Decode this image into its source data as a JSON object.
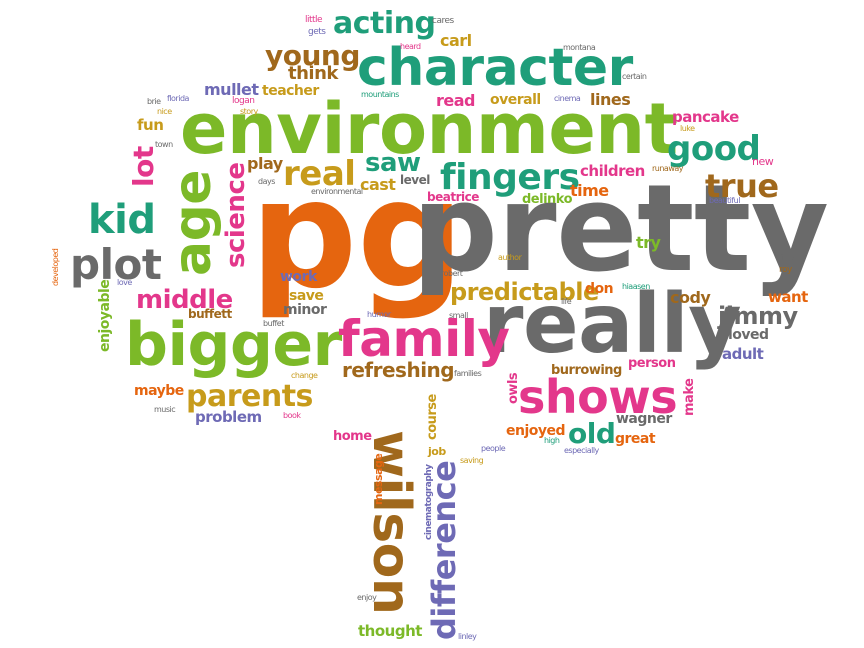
{
  "colors": {
    "teal": "#1f9e7a",
    "green": "#7cb928",
    "magenta": "#e3378b",
    "orange": "#e5650f",
    "gold": "#c79b1b",
    "brown": "#a0681c",
    "gray": "#6a6a6a",
    "purple": "#6e6ab5"
  },
  "words": [
    {
      "id": "pg",
      "text": "pg",
      "color": "#e5650f"
    },
    {
      "id": "pretty",
      "text": "pretty",
      "color": "#6a6a6a"
    },
    {
      "id": "environment",
      "text": "environment",
      "color": "#7cb928"
    },
    {
      "id": "really",
      "text": "really",
      "color": "#6a6a6a"
    },
    {
      "id": "character",
      "text": "character",
      "color": "#1f9e7a"
    },
    {
      "id": "bigger",
      "text": "bigger",
      "color": "#7cb928"
    },
    {
      "id": "family",
      "text": "family",
      "color": "#e3378b"
    },
    {
      "id": "wilson",
      "text": "wilson",
      "color": "#a0681c"
    },
    {
      "id": "shows",
      "text": "shows",
      "color": "#e3378b"
    },
    {
      "id": "age",
      "text": "age",
      "color": "#7cb928"
    },
    {
      "id": "plot",
      "text": "plot",
      "color": "#6a6a6a"
    },
    {
      "id": "kid",
      "text": "kid",
      "color": "#1f9e7a"
    },
    {
      "id": "difference",
      "text": "difference",
      "color": "#6e6ab5"
    },
    {
      "id": "fingers",
      "text": "fingers",
      "color": "#1f9e7a"
    },
    {
      "id": "good",
      "text": "good",
      "color": "#1f9e7a"
    },
    {
      "id": "true",
      "text": "true",
      "color": "#a0681c"
    },
    {
      "id": "real",
      "text": "real",
      "color": "#c79b1b"
    },
    {
      "id": "acting",
      "text": "acting",
      "color": "#1f9e7a"
    },
    {
      "id": "young",
      "text": "young",
      "color": "#a0681c"
    },
    {
      "id": "middle",
      "text": "middle",
      "color": "#e3378b"
    },
    {
      "id": "parents",
      "text": "parents",
      "color": "#c79b1b"
    },
    {
      "id": "science",
      "text": "science",
      "color": "#e3378b"
    },
    {
      "id": "predictable",
      "text": "predictable",
      "color": "#c79b1b"
    },
    {
      "id": "old",
      "text": "old",
      "color": "#1f9e7a"
    },
    {
      "id": "saw",
      "text": "saw",
      "color": "#1f9e7a"
    },
    {
      "id": "lot",
      "text": "lot",
      "color": "#e3378b"
    },
    {
      "id": "refreshing",
      "text": "refreshing",
      "color": "#a0681c"
    },
    {
      "id": "jimmy",
      "text": "jimmy",
      "color": "#6a6a6a"
    },
    {
      "id": "think",
      "text": "think",
      "color": "#a0681c"
    },
    {
      "id": "carl",
      "text": "carl",
      "color": "#c79b1b"
    },
    {
      "id": "mullet",
      "text": "mullet",
      "color": "#6e6ab5"
    },
    {
      "id": "teacher",
      "text": "teacher",
      "color": "#c79b1b"
    },
    {
      "id": "read",
      "text": "read",
      "color": "#e3378b"
    },
    {
      "id": "overall",
      "text": "overall",
      "color": "#c79b1b"
    },
    {
      "id": "lines",
      "text": "lines",
      "color": "#a0681c"
    },
    {
      "id": "pancake",
      "text": "pancake",
      "color": "#e3378b"
    },
    {
      "id": "cast",
      "text": "cast",
      "color": "#c79b1b"
    },
    {
      "id": "play",
      "text": "play",
      "color": "#a0681c"
    },
    {
      "id": "children",
      "text": "children",
      "color": "#e3378b"
    },
    {
      "id": "time",
      "text": "time",
      "color": "#e5650f"
    },
    {
      "id": "level",
      "text": "level",
      "color": "#6a6a6a"
    },
    {
      "id": "beatrice",
      "text": "beatrice",
      "color": "#e3378b"
    },
    {
      "id": "delinko",
      "text": "delinko",
      "color": "#7cb928"
    },
    {
      "id": "try",
      "text": "try",
      "color": "#7cb928"
    },
    {
      "id": "work",
      "text": "work",
      "color": "#6e6ab5"
    },
    {
      "id": "save",
      "text": "save",
      "color": "#c79b1b"
    },
    {
      "id": "minor",
      "text": "minor",
      "color": "#6a6a6a"
    },
    {
      "id": "don",
      "text": "don",
      "color": "#e5650f"
    },
    {
      "id": "cody",
      "text": "cody",
      "color": "#a0681c"
    },
    {
      "id": "want",
      "text": "want",
      "color": "#e5650f"
    },
    {
      "id": "loved",
      "text": "loved",
      "color": "#6a6a6a"
    },
    {
      "id": "adult",
      "text": "adult",
      "color": "#6e6ab5"
    },
    {
      "id": "person",
      "text": "person",
      "color": "#e3378b"
    },
    {
      "id": "burrowing",
      "text": "burrowing",
      "color": "#a0681c"
    },
    {
      "id": "enjoyed",
      "text": "enjoyed",
      "color": "#e5650f"
    },
    {
      "id": "wagner",
      "text": "wagner",
      "color": "#6a6a6a"
    },
    {
      "id": "great",
      "text": "great",
      "color": "#e5650f"
    },
    {
      "id": "maybe",
      "text": "maybe",
      "color": "#e5650f"
    },
    {
      "id": "problem",
      "text": "problem",
      "color": "#6e6ab5"
    },
    {
      "id": "buffett",
      "text": "buffett",
      "color": "#a0681c"
    },
    {
      "id": "home",
      "text": "home",
      "color": "#e3378b"
    },
    {
      "id": "fun",
      "text": "fun",
      "color": "#c79b1b"
    },
    {
      "id": "course",
      "text": "course",
      "color": "#c79b1b"
    },
    {
      "id": "owls",
      "text": "owls",
      "color": "#e3378b"
    },
    {
      "id": "make",
      "text": "make",
      "color": "#e3378b"
    },
    {
      "id": "thought",
      "text": "thought",
      "color": "#7cb928"
    },
    {
      "id": "enjoyable",
      "text": "enjoyable",
      "color": "#7cb928"
    },
    {
      "id": "message",
      "text": "message",
      "color": "#e5650f"
    },
    {
      "id": "cinematography",
      "text": "cinematography",
      "color": "#6e6ab5"
    },
    {
      "id": "job",
      "text": "job",
      "color": "#c79b1b"
    },
    {
      "id": "little",
      "text": "little",
      "color": "#e3378b"
    },
    {
      "id": "gets",
      "text": "gets",
      "color": "#6e6ab5"
    },
    {
      "id": "cares",
      "text": "cares",
      "color": "#6a6a6a"
    },
    {
      "id": "heard",
      "text": "heard",
      "color": "#e3378b"
    },
    {
      "id": "montana",
      "text": "montana",
      "color": "#6a6a6a"
    },
    {
      "id": "certain",
      "text": "certain",
      "color": "#6a6a6a"
    },
    {
      "id": "florida",
      "text": "florida",
      "color": "#6e6ab5"
    },
    {
      "id": "logan",
      "text": "logan",
      "color": "#e3378b"
    },
    {
      "id": "brie",
      "text": "brie",
      "color": "#6a6a6a"
    },
    {
      "id": "nice",
      "text": "nice",
      "color": "#c79b1b"
    },
    {
      "id": "story",
      "text": "story",
      "color": "#c79b1b"
    },
    {
      "id": "mountains",
      "text": "mountains",
      "color": "#1f9e7a"
    },
    {
      "id": "cinema",
      "text": "cinema",
      "color": "#6e6ab5"
    },
    {
      "id": "luke",
      "text": "luke",
      "color": "#c79b1b"
    },
    {
      "id": "town",
      "text": "town",
      "color": "#6a6a6a"
    },
    {
      "id": "new",
      "text": "new",
      "color": "#e3378b"
    },
    {
      "id": "days",
      "text": "days",
      "color": "#6a6a6a"
    },
    {
      "id": "environmental",
      "text": "environmental",
      "color": "#6a6a6a"
    },
    {
      "id": "runaway",
      "text": "runaway",
      "color": "#a0681c"
    },
    {
      "id": "beautiful",
      "text": "beautiful",
      "color": "#6e6ab5"
    },
    {
      "id": "developed",
      "text": "developed",
      "color": "#e5650f"
    },
    {
      "id": "author",
      "text": "author",
      "color": "#c79b1b"
    },
    {
      "id": "robert",
      "text": "robert",
      "color": "#6a6a6a"
    },
    {
      "id": "hiaasen",
      "text": "hiaasen",
      "color": "#1f9e7a"
    },
    {
      "id": "films",
      "text": "films",
      "color": "#6a6a6a"
    },
    {
      "id": "roy",
      "text": "roy",
      "color": "#a0681c"
    },
    {
      "id": "love",
      "text": "love",
      "color": "#6e6ab5"
    },
    {
      "id": "life",
      "text": "life",
      "color": "#6a6a6a"
    },
    {
      "id": "buffet",
      "text": "buffet",
      "color": "#6a6a6a"
    },
    {
      "id": "humor",
      "text": "humor",
      "color": "#6e6ab5"
    },
    {
      "id": "small",
      "text": "small",
      "color": "#6a6a6a"
    },
    {
      "id": "change",
      "text": "change",
      "color": "#c79b1b"
    },
    {
      "id": "families",
      "text": "families",
      "color": "#6a6a6a"
    },
    {
      "id": "music",
      "text": "music",
      "color": "#6a6a6a"
    },
    {
      "id": "book",
      "text": "book",
      "color": "#e3378b"
    },
    {
      "id": "saving",
      "text": "saving",
      "color": "#c79b1b"
    },
    {
      "id": "people",
      "text": "people",
      "color": "#6e6ab5"
    },
    {
      "id": "high",
      "text": "high",
      "color": "#1f9e7a"
    },
    {
      "id": "especially",
      "text": "especially",
      "color": "#6e6ab5"
    },
    {
      "id": "enjoy",
      "text": "enjoy",
      "color": "#6a6a6a"
    },
    {
      "id": "linley",
      "text": "linley",
      "color": "#6e6ab5"
    }
  ]
}
